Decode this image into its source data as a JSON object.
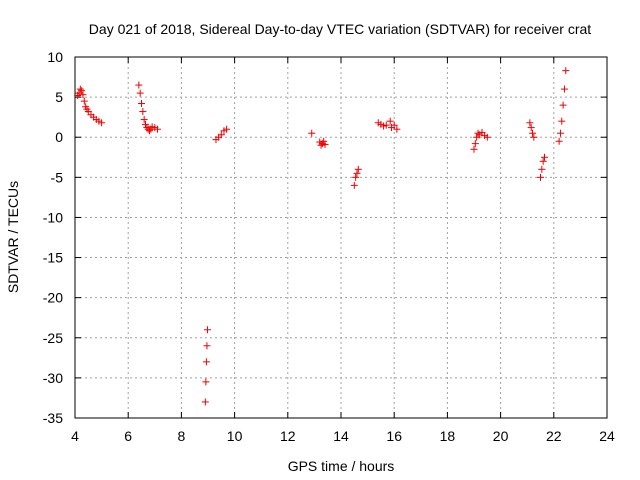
{
  "chart_data": {
    "type": "scatter",
    "title": "Day 021 of 2018, Sidereal Day-to-day VTEC variation (SDTVAR) for receiver crat",
    "xlabel": "GPS time / hours",
    "ylabel": "SDTVAR / TECUs",
    "xlim": [
      4,
      24
    ],
    "ylim": [
      -35,
      10
    ],
    "xticks": [
      "4",
      "6",
      "8",
      "10",
      "12",
      "14",
      "16",
      "18",
      "20",
      "22",
      "24"
    ],
    "yticks": [
      "10",
      "5",
      "0",
      "-5",
      "-10",
      "-15",
      "-20",
      "-25",
      "-30",
      "-35"
    ],
    "grid": true,
    "marker": "plus",
    "color": "#ee0000",
    "series": [
      {
        "name": "SDTVAR",
        "x": [
          4.1,
          4.15,
          4.2,
          4.25,
          4.3,
          4.35,
          4.4,
          4.45,
          4.5,
          4.6,
          4.7,
          4.8,
          4.9,
          5.0,
          6.4,
          6.45,
          6.5,
          6.55,
          6.6,
          6.65,
          6.7,
          6.75,
          6.8,
          6.85,
          6.9,
          7.0,
          7.1,
          9.3,
          9.4,
          9.5,
          9.6,
          9.7,
          12.9,
          13.2,
          13.25,
          13.3,
          13.35,
          13.4,
          14.5,
          14.55,
          14.6,
          14.65,
          15.4,
          15.5,
          15.6,
          15.7,
          15.85,
          15.9,
          16.0,
          16.1,
          19.0,
          19.05,
          19.1,
          19.15,
          19.2,
          19.3,
          19.4,
          19.5,
          21.1,
          21.15,
          21.2,
          21.25,
          21.5,
          21.55,
          21.6,
          21.65,
          22.2,
          22.25,
          22.3,
          22.35,
          22.4,
          22.45,
          8.9,
          8.92,
          8.94,
          8.96,
          8.98
        ],
        "y": [
          5.2,
          5.5,
          6.0,
          5.8,
          5.3,
          4.5,
          3.8,
          3.5,
          3.2,
          2.8,
          2.5,
          2.2,
          2.0,
          1.8,
          6.5,
          5.5,
          4.2,
          3.2,
          2.2,
          1.6,
          1.2,
          1.0,
          0.8,
          1.0,
          1.3,
          1.2,
          1.0,
          -0.3,
          0.0,
          0.3,
          0.8,
          1.0,
          0.5,
          -0.6,
          -1.0,
          -0.8,
          -0.5,
          -0.9,
          -6.0,
          -5.0,
          -4.5,
          -4.0,
          1.8,
          1.6,
          1.4,
          1.5,
          2.0,
          1.2,
          1.5,
          1.0,
          -1.5,
          -0.8,
          0.0,
          0.5,
          0.3,
          0.6,
          0.2,
          0.0,
          1.8,
          1.2,
          0.5,
          0.0,
          -5.0,
          -4.0,
          -3.0,
          -2.5,
          -0.5,
          0.5,
          2.0,
          4.0,
          6.0,
          8.3,
          -33.0,
          -30.5,
          -28.0,
          -26.0,
          -24.0
        ]
      }
    ]
  }
}
